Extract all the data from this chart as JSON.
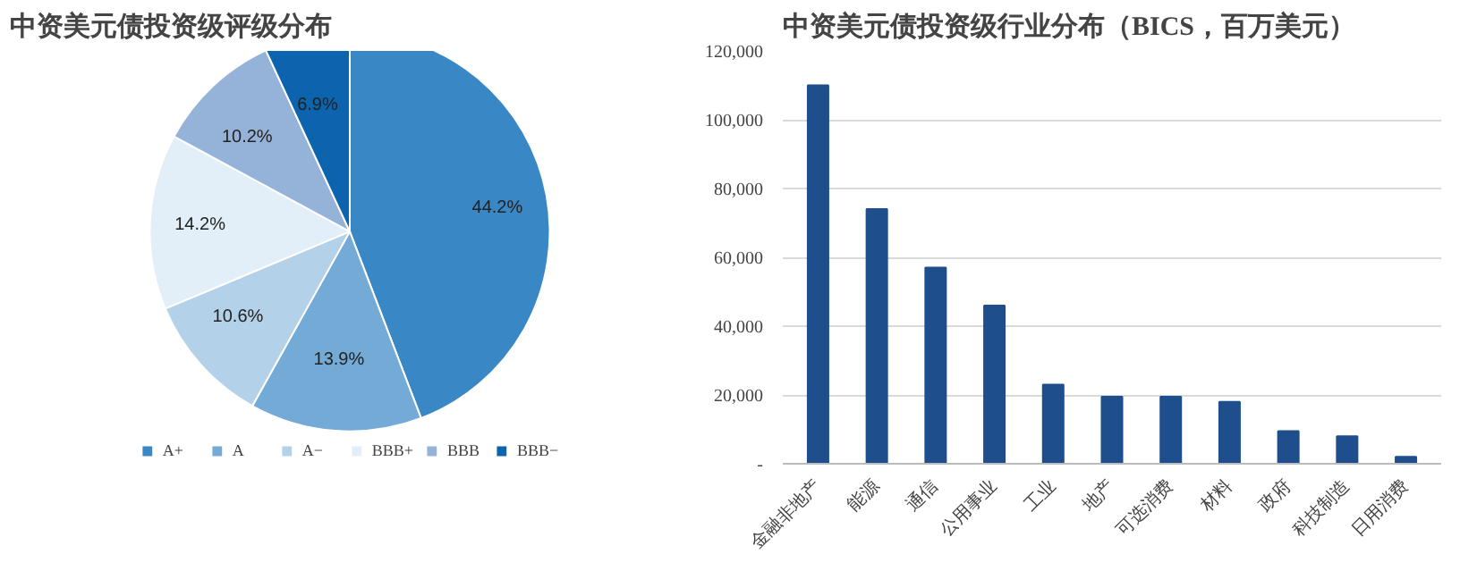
{
  "chart_data": [
    {
      "type": "pie",
      "title": "中资美元债投资级评级分布",
      "categories": [
        "A+",
        "A",
        "A−",
        "BBB+",
        "BBB",
        "BBB−"
      ],
      "values": [
        44.2,
        13.9,
        10.6,
        14.2,
        10.2,
        6.9
      ],
      "colors": [
        "#3a87c6",
        "#74aad6",
        "#b3d1e8",
        "#e2eef8",
        "#95b2d8",
        "#0b64ad"
      ],
      "value_labels": [
        "44.2%",
        "13.9%",
        "10.6%",
        "14.2%",
        "10.2%",
        "6.9%"
      ],
      "legend": "bottom"
    },
    {
      "type": "bar",
      "title": "中资美元债投资级行业分布（BICS，百万美元）",
      "categories": [
        "金融非地产",
        "能源",
        "通信",
        "公用事业",
        "工业",
        "地产",
        "可选消费",
        "材料",
        "政府",
        "科技制造",
        "日用消费"
      ],
      "values": [
        110000,
        74000,
        57000,
        46000,
        23000,
        19500,
        19500,
        18000,
        9500,
        8000,
        2000
      ],
      "color": "#1f4e8c",
      "ylim": [
        0,
        120000
      ],
      "yticks": [
        {
          "value": 0,
          "label": "-"
        },
        {
          "value": 20000,
          "label": "20,000"
        },
        {
          "value": 40000,
          "label": "40,000"
        },
        {
          "value": 60000,
          "label": "60,000"
        },
        {
          "value": 80000,
          "label": "80,000"
        },
        {
          "value": 100000,
          "label": "100,000"
        },
        {
          "value": 120000,
          "label": "120,000"
        }
      ],
      "grid": "y"
    }
  ]
}
